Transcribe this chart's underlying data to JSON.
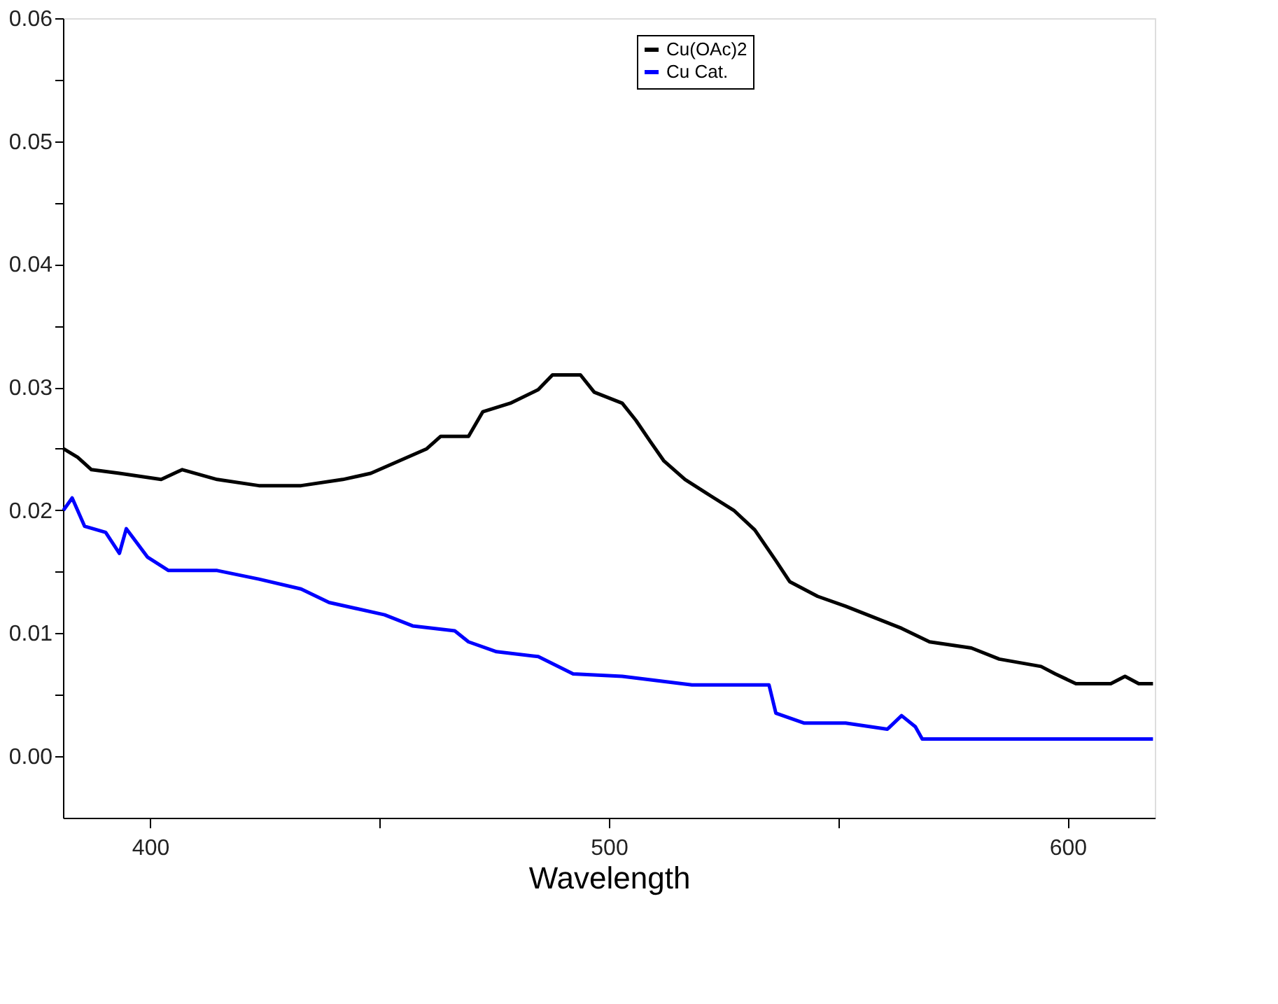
{
  "chart_data": {
    "type": "line",
    "xlabel": "Wavelength",
    "xlim": [
      381,
      619
    ],
    "xticks": [
      400,
      {
        "value": 450,
        "label": null
      },
      500,
      {
        "value": 550,
        "label": null
      },
      600
    ],
    "ylim": [
      -0.005,
      0.06
    ],
    "yticks": [
      {
        "value": 0,
        "label": "0.00"
      },
      {
        "value": 0.005,
        "label": null
      },
      {
        "value": 0.01,
        "label": "0.01"
      },
      {
        "value": 0.015,
        "label": null
      },
      {
        "value": 0.02,
        "label": "0.02"
      },
      {
        "value": 0.025,
        "label": null
      },
      {
        "value": 0.03,
        "label": "0.03"
      },
      {
        "value": 0.035,
        "label": null
      },
      {
        "value": 0.04,
        "label": "0.04"
      },
      {
        "value": 0.045,
        "label": null
      },
      {
        "value": 0.05,
        "label": "0.05"
      },
      {
        "value": 0.055,
        "label": null
      },
      {
        "value": 0.06,
        "label": "0.06"
      }
    ],
    "legend": "top right",
    "grid": false,
    "line_style": "solid",
    "marker": "none",
    "series": [
      {
        "name": "Cu(OAc)2",
        "color": "#000000",
        "x": [
          381.1,
          384.2,
          387.2,
          393.3,
          402.4,
          407.0,
          414.6,
          423.7,
          432.9,
          442.0,
          448.1,
          454.2,
          460.3,
          463.3,
          469.4,
          472.5,
          478.5,
          484.6,
          487.7,
          493.8,
          496.8,
          502.9,
          505.9,
          509.0,
          512.0,
          516.6,
          521.2,
          527.2,
          531.8,
          536.4,
          539.4,
          545.5,
          551.6,
          557.7,
          563.8,
          569.9,
          579.0,
          585.1,
          594.2,
          597.3,
          601.8,
          609.4,
          612.5,
          615.5,
          618.6
        ],
        "values": [
          0.025,
          0.0243,
          0.0233,
          0.023,
          0.0225,
          0.0233,
          0.0225,
          0.022,
          0.022,
          0.0225,
          0.023,
          0.024,
          0.025,
          0.026,
          0.026,
          0.028,
          0.0287,
          0.0298,
          0.031,
          0.031,
          0.0296,
          0.0287,
          0.0273,
          0.0256,
          0.024,
          0.0225,
          0.0214,
          0.02,
          0.0184,
          0.0159,
          0.0142,
          0.013,
          0.0122,
          0.0113,
          0.0104,
          0.0093,
          0.0088,
          0.0079,
          0.0073,
          0.0067,
          0.0059,
          0.0059,
          0.0065,
          0.0059,
          0.0059
        ]
      },
      {
        "name": "Cu Cat.",
        "color": "#0000ff",
        "x": [
          381.1,
          383.0,
          385.7,
          390.3,
          393.3,
          394.8,
          399.4,
          404.0,
          414.6,
          423.7,
          432.9,
          439.0,
          451.1,
          457.2,
          466.4,
          469.4,
          475.5,
          484.6,
          492.2,
          502.9,
          518.1,
          534.9,
          536.4,
          542.5,
          551.6,
          560.7,
          563.8,
          566.8,
          568.3,
          618.6
        ],
        "values": [
          0.02,
          0.021,
          0.0187,
          0.0182,
          0.0165,
          0.0185,
          0.0162,
          0.0151,
          0.0151,
          0.0144,
          0.0136,
          0.0125,
          0.0115,
          0.0106,
          0.0102,
          0.0093,
          0.0085,
          0.0081,
          0.0067,
          0.0065,
          0.0058,
          0.0058,
          0.0035,
          0.0027,
          0.0027,
          0.0022,
          0.0033,
          0.0024,
          0.0014,
          0.0014
        ]
      }
    ]
  }
}
